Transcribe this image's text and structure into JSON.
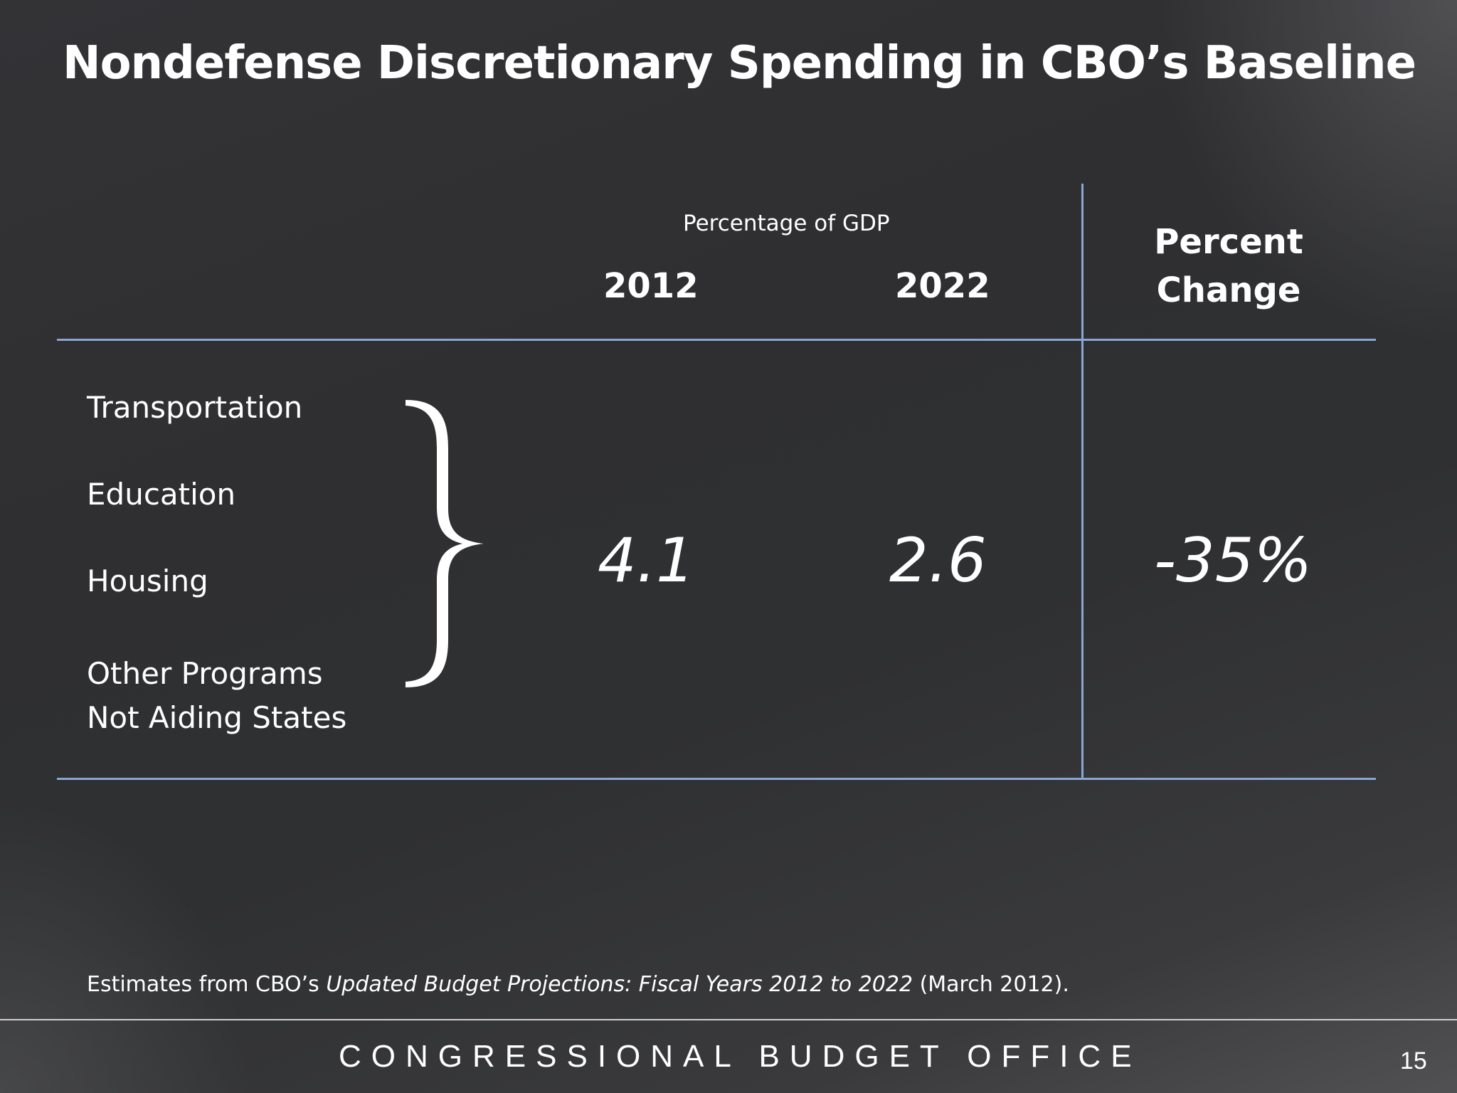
{
  "slide": {
    "title": "Nondefense Discretionary Spending in CBO’s Baseline",
    "page_number": "15"
  },
  "table": {
    "group_header": "Percentage of GDP",
    "columns": [
      "2012",
      "2022"
    ],
    "change_header_line1": "Percent",
    "change_header_line2": "Change",
    "categories": [
      "Transportation",
      "Education",
      "Housing",
      "Other Programs",
      "Not Aiding States"
    ],
    "values": {
      "y2012": "4.1",
      "y2022": "2.6",
      "percent_change": "-35%"
    },
    "line_color": "#8aa6d2"
  },
  "source": {
    "prefix": "Estimates from CBO’s ",
    "title": "Updated Budget Projections: Fiscal Years 2012 to 2022",
    "suffix": " (March 2012)."
  },
  "footer": {
    "agency": "CONGRESSIONAL BUDGET OFFICE"
  },
  "icons": {
    "brace": "right-curly-brace-icon"
  }
}
